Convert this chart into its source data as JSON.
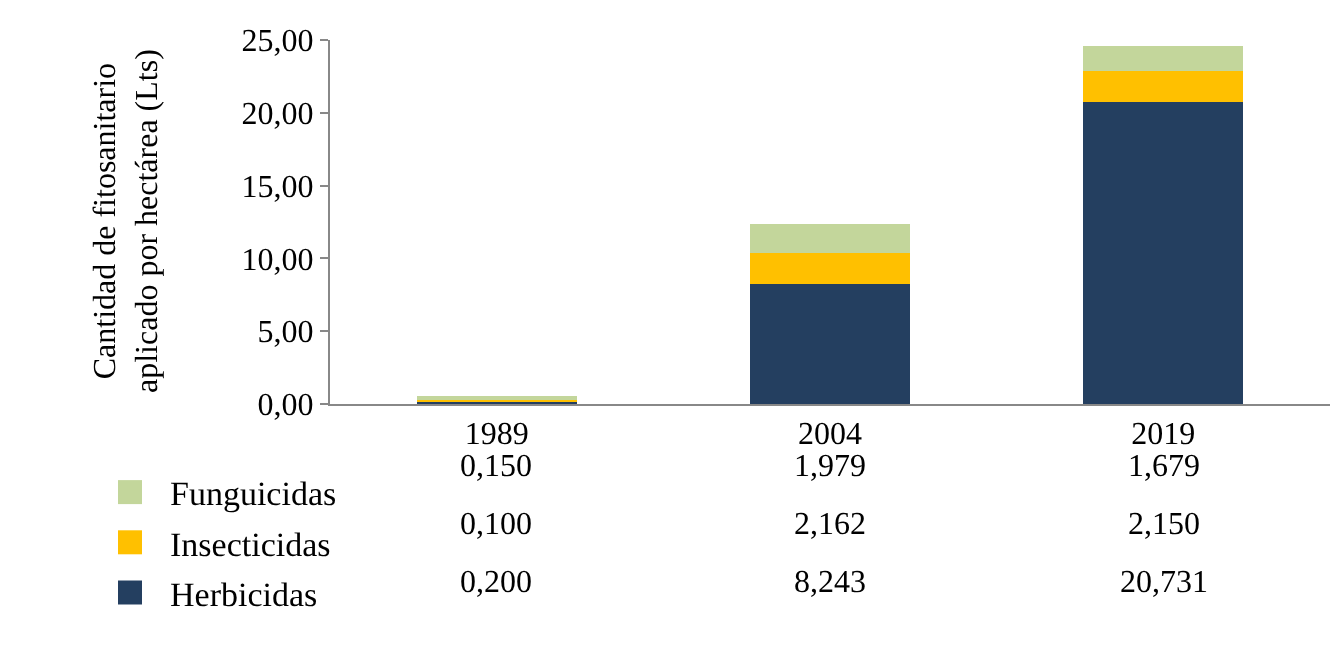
{
  "chart_data": {
    "type": "bar",
    "stacked": true,
    "ylabel": "Cantidad de fitosanitario aplicado por hectárea (Lts)",
    "categories": [
      "1989",
      "2004",
      "2019"
    ],
    "series": [
      {
        "name": "Herbicidas",
        "color": "#243f60",
        "values": [
          0.2,
          8.243,
          20.731
        ],
        "value_labels": [
          "0,200",
          "8,243",
          "20,731"
        ]
      },
      {
        "name": "Insecticidas",
        "color": "#ffc000",
        "values": [
          0.1,
          2.162,
          2.15
        ],
        "value_labels": [
          "0,100",
          "2,162",
          "2,150"
        ]
      },
      {
        "name": "Funguicidas",
        "color": "#c3d69b",
        "values": [
          0.15,
          1.979,
          1.679
        ],
        "value_labels": [
          "0,150",
          "1,979",
          "1,679"
        ]
      }
    ],
    "ylim": [
      0,
      25
    ],
    "yticks": [
      {
        "value": 0,
        "label": "0,00"
      },
      {
        "value": 5,
        "label": "5,00"
      },
      {
        "value": 10,
        "label": "10,00"
      },
      {
        "value": 15,
        "label": "15,00"
      },
      {
        "value": 20,
        "label": "20,00"
      },
      {
        "value": 25,
        "label": "25,00"
      }
    ],
    "legend": "bottom left"
  }
}
